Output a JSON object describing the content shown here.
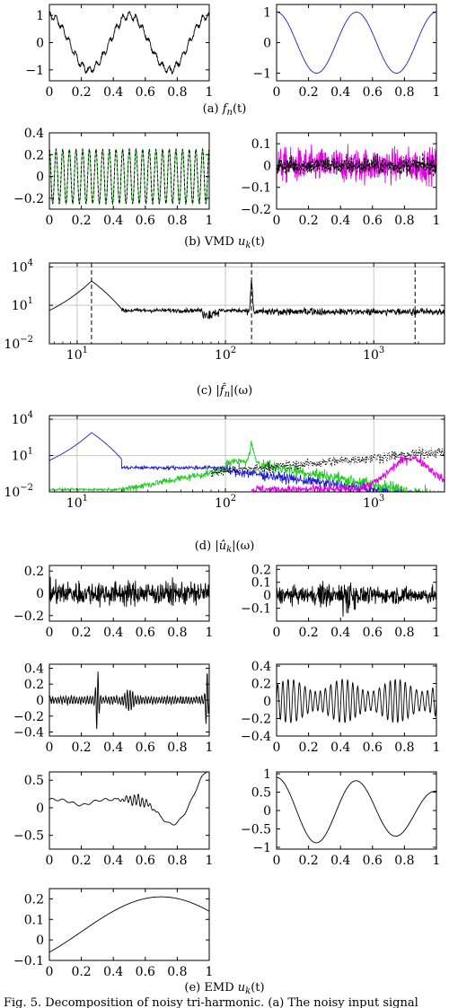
{
  "figure": {
    "bottom_caption": "Fig. 5. Decomposition of noisy tri-harmonic. (a) The noisy input signal"
  },
  "captions": {
    "a": {
      "lead": "(a) ",
      "math": "f",
      "sub": "n",
      "tail": "(t)"
    },
    "b": {
      "lead": "(b) VMD ",
      "math": "u",
      "sub": "k",
      "tail": "(t)"
    },
    "c": {
      "lead": "(c) |",
      "math": "f̂",
      "sub": "n",
      "tail": "|(ω)"
    },
    "d": {
      "lead": "(d) |",
      "math": "û",
      "sub": "k",
      "tail": "|(ω)"
    },
    "e": {
      "lead": "(e) EMD ",
      "math": "u",
      "sub": "k",
      "tail": "(t)"
    }
  },
  "chart_data": [
    {
      "id": "a1",
      "type": "line",
      "caption": "a",
      "xlim": [
        0,
        1
      ],
      "ylim": [
        -1.4,
        1.4
      ],
      "xticks": [
        0,
        0.2,
        0.4,
        0.6,
        0.8,
        1
      ],
      "xtick_labels": [
        "0",
        "0.2",
        "0.4",
        "0.6",
        "0.8",
        "1"
      ],
      "yticks": [
        -1,
        0,
        1
      ],
      "ytick_labels": [
        "−1",
        "0",
        "1"
      ],
      "series": [
        {
          "kind": "noisy-tri-harmonic",
          "color": "#000000",
          "amp": 1.0,
          "freq": 2,
          "harm_amp": 0.12,
          "harm_freq": 24,
          "noise": 0.06
        }
      ]
    },
    {
      "id": "a2",
      "type": "line",
      "caption": "a",
      "xlim": [
        0,
        1
      ],
      "ylim": [
        -1.25,
        1.25
      ],
      "xticks": [
        0,
        0.2,
        0.4,
        0.6,
        0.8,
        1
      ],
      "xtick_labels": [
        "0",
        "0.2",
        "0.4",
        "0.6",
        "0.8",
        "1"
      ],
      "yticks": [
        -1,
        0,
        1
      ],
      "ytick_labels": [
        "−1",
        "0",
        "1"
      ],
      "series": [
        {
          "kind": "cosine",
          "color": "#1f1fd0",
          "amp": 1.0,
          "freq": 2
        }
      ]
    },
    {
      "id": "b1",
      "type": "line",
      "caption": "b",
      "xlim": [
        0,
        1
      ],
      "ylim": [
        -0.3,
        0.4
      ],
      "xticks": [
        0,
        0.2,
        0.4,
        0.6,
        0.8,
        1
      ],
      "xtick_labels": [
        "0",
        "0.2",
        "0.4",
        "0.6",
        "0.8",
        "1"
      ],
      "yticks": [
        -0.2,
        0,
        0.2,
        0.4
      ],
      "ytick_labels": [
        "−0.2",
        "0",
        "0.2",
        "0.4"
      ],
      "series": [
        {
          "kind": "cosine",
          "color": "#22cc22",
          "amp": 0.25,
          "freq": 24
        },
        {
          "kind": "cosine-dashed",
          "color": "#000000",
          "amp": 0.25,
          "freq": 24
        }
      ]
    },
    {
      "id": "b2",
      "type": "line",
      "caption": "b",
      "xlim": [
        0,
        1
      ],
      "ylim": [
        -0.2,
        0.15
      ],
      "xticks": [
        0,
        0.2,
        0.4,
        0.6,
        0.8,
        1
      ],
      "xtick_labels": [
        "0",
        "0.2",
        "0.4",
        "0.6",
        "0.8",
        "1"
      ],
      "yticks": [
        -0.2,
        -0.1,
        0,
        0.1
      ],
      "ytick_labels": [
        "−0.2",
        "−0.1",
        "0",
        "0.1"
      ],
      "series": [
        {
          "kind": "noise",
          "color": "#e000e0",
          "amp": 0.075
        },
        {
          "kind": "noise-dashed",
          "color": "#000000",
          "amp": 0.04
        }
      ]
    },
    {
      "id": "c",
      "type": "line",
      "caption": "c",
      "xscale": "log",
      "yscale": "log",
      "xlim": [
        6.5,
        3000
      ],
      "ylim": [
        0.01,
        20000
      ],
      "xticks": [
        10,
        100,
        1000
      ],
      "xtick_labels": [
        "10",
        "10",
        "10"
      ],
      "xtick_exps": [
        "1",
        "2",
        "3"
      ],
      "yticks": [
        0.01,
        10,
        10000
      ],
      "ytick_labels": [
        "10",
        "10",
        "10"
      ],
      "ytick_exps": [
        "−2",
        "1",
        "4"
      ],
      "grid_x": [
        10,
        100,
        1000
      ],
      "grid_y": [
        10,
        10000
      ],
      "dashed_x": [
        12.5,
        150,
        1900
      ],
      "series": [
        {
          "kind": "spectrum",
          "color": "#000000"
        }
      ]
    },
    {
      "id": "d",
      "type": "line",
      "caption": "d",
      "xscale": "log",
      "yscale": "log",
      "xlim": [
        6.5,
        3000
      ],
      "ylim": [
        0.01,
        20000
      ],
      "xticks": [
        10,
        100,
        1000
      ],
      "xtick_labels": [
        "10",
        "10",
        "10"
      ],
      "xtick_exps": [
        "1",
        "2",
        "3"
      ],
      "yticks": [
        0.01,
        10,
        10000
      ],
      "ytick_labels": [
        "10",
        "10",
        "10"
      ],
      "ytick_exps": [
        "−2",
        "1",
        "4"
      ],
      "grid_x": [
        10,
        100,
        1000
      ],
      "grid_y": [
        10,
        10000
      ],
      "series": [
        {
          "kind": "mode-spectrum-blue",
          "color": "#1f1fd0"
        },
        {
          "kind": "mode-spectrum-green",
          "color": "#22cc22"
        },
        {
          "kind": "mode-spectrum-magenta",
          "color": "#e000e0"
        },
        {
          "kind": "mode-spectrum-dotted",
          "color": "#000000"
        }
      ]
    },
    {
      "id": "e1",
      "type": "line",
      "caption": "e",
      "xlim": [
        0,
        1
      ],
      "ylim": [
        -0.25,
        0.25
      ],
      "xticks": [
        0,
        0.2,
        0.4,
        0.6,
        0.8,
        1
      ],
      "xtick_labels": [
        "0",
        "0.2",
        "0.4",
        "0.6",
        "0.8",
        "1"
      ],
      "yticks": [
        -0.2,
        0,
        0.2
      ],
      "ytick_labels": [
        "−0.2",
        "0",
        "0.2"
      ],
      "series": [
        {
          "kind": "noise",
          "color": "#000000",
          "amp": 0.1
        }
      ]
    },
    {
      "id": "e2",
      "type": "line",
      "caption": "e",
      "xlim": [
        0,
        1
      ],
      "ylim": [
        -0.2,
        0.23
      ],
      "xticks": [
        0,
        0.2,
        0.4,
        0.6,
        0.8,
        1
      ],
      "xtick_labels": [
        "0",
        "0.2",
        "0.4",
        "0.6",
        "0.8",
        "1"
      ],
      "yticks": [
        -0.1,
        0,
        0.1,
        0.2
      ],
      "ytick_labels": [
        "−0.1",
        "0",
        "0.1",
        "0.2"
      ],
      "series": [
        {
          "kind": "noise-bursty",
          "color": "#000000",
          "amp": 0.06
        }
      ]
    },
    {
      "id": "e3",
      "type": "line",
      "caption": "e",
      "xlim": [
        0,
        1
      ],
      "ylim": [
        -0.45,
        0.45
      ],
      "xticks": [
        0,
        0.2,
        0.4,
        0.6,
        0.8,
        1
      ],
      "xtick_labels": [
        "0",
        "0.2",
        "0.4",
        "0.6",
        "0.8",
        "1"
      ],
      "yticks": [
        -0.4,
        -0.2,
        0,
        0.2,
        0.4
      ],
      "ytick_labels": [
        "−0.4",
        "−0.2",
        "0",
        "0.2",
        "0.4"
      ],
      "series": [
        {
          "kind": "imf-bursts",
          "color": "#000000"
        }
      ]
    },
    {
      "id": "e4",
      "type": "line",
      "caption": "e",
      "xlim": [
        0,
        1
      ],
      "ylim": [
        -0.4,
        0.42
      ],
      "xticks": [
        0,
        0.2,
        0.4,
        0.6,
        0.8,
        1
      ],
      "xtick_labels": [
        "0",
        "0.2",
        "0.4",
        "0.6",
        "0.8",
        "1"
      ],
      "yticks": [
        -0.4,
        -0.2,
        0,
        0.2,
        0.4
      ],
      "ytick_labels": [
        "−0.4",
        "−0.2",
        "0",
        "0.2",
        "0.4"
      ],
      "series": [
        {
          "kind": "imf-oscillation",
          "color": "#000000"
        }
      ]
    },
    {
      "id": "e5",
      "type": "line",
      "caption": "e",
      "xlim": [
        0,
        1
      ],
      "ylim": [
        -0.75,
        0.65
      ],
      "xticks": [
        0,
        0.2,
        0.4,
        0.6,
        0.8,
        1
      ],
      "xtick_labels": [
        "0",
        "0.2",
        "0.4",
        "0.6",
        "0.8",
        "1"
      ],
      "yticks": [
        -0.5,
        0,
        0.5
      ],
      "ytick_labels": [
        "−0.5",
        "0",
        "0.5"
      ],
      "series": [
        {
          "kind": "imf-slow",
          "color": "#000000"
        }
      ]
    },
    {
      "id": "e6",
      "type": "line",
      "caption": "e",
      "xlim": [
        0,
        1
      ],
      "ylim": [
        -1.05,
        1.05
      ],
      "xticks": [
        0,
        0.2,
        0.4,
        0.6,
        0.8,
        1
      ],
      "xtick_labels": [
        "0",
        "0.2",
        "0.4",
        "0.6",
        "0.8",
        "1"
      ],
      "yticks": [
        -1,
        -0.5,
        0,
        0.5,
        1
      ],
      "ytick_labels": [
        "−1",
        "−0.5",
        "0",
        "0.5",
        "1"
      ],
      "series": [
        {
          "kind": "imf-cos",
          "color": "#000000"
        }
      ]
    },
    {
      "id": "e7",
      "type": "line",
      "caption": "e",
      "xlim": [
        0,
        1
      ],
      "ylim": [
        -0.1,
        0.25
      ],
      "xticks": [
        0,
        0.2,
        0.4,
        0.6,
        0.8,
        1
      ],
      "xtick_labels": [
        "0",
        "0.2",
        "0.4",
        "0.6",
        "0.8",
        "1"
      ],
      "yticks": [
        -0.1,
        0,
        0.1,
        0.2
      ],
      "ytick_labels": [
        "−0.1",
        "0",
        "0.1",
        "0.2"
      ],
      "series": [
        {
          "kind": "residual",
          "color": "#000000"
        }
      ]
    }
  ]
}
